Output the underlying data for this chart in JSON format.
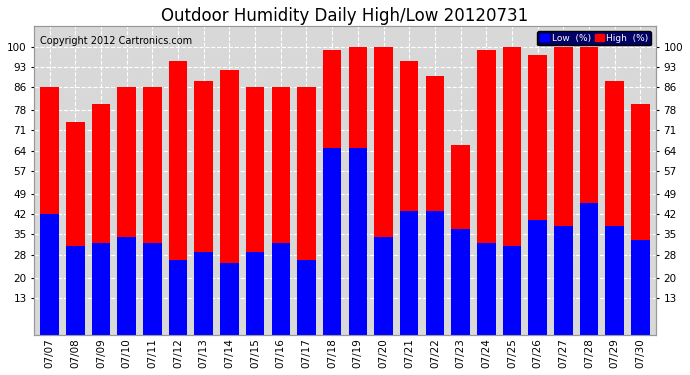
{
  "title": "Outdoor Humidity Daily High/Low 20120731",
  "copyright": "Copyright 2012 Cartronics.com",
  "dates": [
    "07/07",
    "07/08",
    "07/09",
    "07/10",
    "07/11",
    "07/12",
    "07/13",
    "07/14",
    "07/15",
    "07/16",
    "07/17",
    "07/18",
    "07/19",
    "07/20",
    "07/21",
    "07/22",
    "07/23",
    "07/24",
    "07/25",
    "07/26",
    "07/27",
    "07/28",
    "07/29",
    "07/30"
  ],
  "high": [
    86,
    74,
    80,
    86,
    86,
    95,
    88,
    92,
    86,
    86,
    86,
    99,
    100,
    100,
    95,
    90,
    66,
    99,
    100,
    97,
    100,
    100,
    88,
    80
  ],
  "low": [
    42,
    31,
    32,
    34,
    32,
    26,
    29,
    25,
    29,
    32,
    26,
    65,
    65,
    34,
    43,
    43,
    37,
    32,
    31,
    40,
    38,
    46,
    38,
    33
  ],
  "high_color": "#ff0000",
  "low_color": "#0000ff",
  "bg_color": "#ffffff",
  "plot_bg_color": "#d8d8d8",
  "grid_color": "#ffffff",
  "ylim": [
    0,
    107
  ],
  "yticks": [
    13,
    20,
    28,
    35,
    42,
    49,
    57,
    64,
    71,
    78,
    86,
    93,
    100
  ],
  "bar_width": 0.72,
  "legend_low_label": "Low  (%)",
  "legend_high_label": "High  (%)",
  "title_fontsize": 12,
  "tick_fontsize": 7.5,
  "copyright_fontsize": 7
}
